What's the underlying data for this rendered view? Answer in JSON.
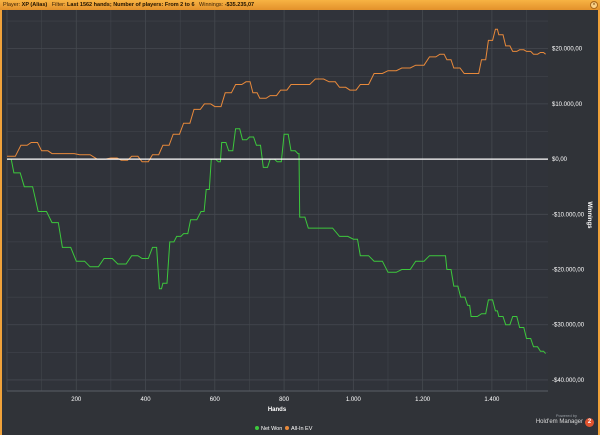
{
  "header": {
    "player_label": "Player:",
    "player_value": "XP (Alias)",
    "filter_label": "Filter:",
    "filter_value": "Last 1562 hands; Number of players: From 2 to 6",
    "winnings_label": "Winnings:",
    "winnings_value": "-$35.235,07"
  },
  "branding": {
    "powered_by": "Powered by",
    "product": "Hold'em Manager",
    "badge": "2"
  },
  "colors": {
    "background": "#303338",
    "grid": "#454950",
    "header": "#f0a23a",
    "net_won": "#3cc83c",
    "all_in_ev": "#e8893a",
    "zero_line": "#ffffff"
  },
  "chart_data": {
    "type": "line",
    "title": "",
    "xlabel": "Hands",
    "ylabel": "Winnings",
    "xlim": [
      0,
      1562
    ],
    "ylim": [
      -42000,
      27000
    ],
    "x_ticks": [
      200,
      400,
      600,
      800,
      1000,
      1200,
      1400
    ],
    "x_tick_labels": [
      "200",
      "400",
      "600",
      "800",
      "1.000",
      "1.200",
      "1.400"
    ],
    "y_ticks": [
      20000,
      10000,
      0,
      -10000,
      -20000,
      -30000,
      -40000
    ],
    "y_tick_labels": [
      "$20.000,00",
      "$10.000,00",
      "$0,00",
      "-$10.000,00",
      "-$20.000,00",
      "-$30.000,00",
      "-$40.000,00"
    ],
    "grid": true,
    "legend_position": "bottom-center",
    "series": [
      {
        "name": "Net Won",
        "color": "#3cc83c",
        "points": [
          [
            0,
            0
          ],
          [
            20,
            -2500
          ],
          [
            50,
            -5000
          ],
          [
            90,
            -9500
          ],
          [
            130,
            -11500
          ],
          [
            160,
            -16000
          ],
          [
            200,
            -18500
          ],
          [
            240,
            -19500
          ],
          [
            280,
            -18000
          ],
          [
            320,
            -19000
          ],
          [
            360,
            -17500
          ],
          [
            390,
            -18000
          ],
          [
            420,
            -16000
          ],
          [
            440,
            -23500
          ],
          [
            450,
            -22500
          ],
          [
            470,
            -15000
          ],
          [
            490,
            -14000
          ],
          [
            510,
            -13500
          ],
          [
            530,
            -11000
          ],
          [
            560,
            -9500
          ],
          [
            575,
            -5500
          ],
          [
            590,
            0
          ],
          [
            610,
            -500
          ],
          [
            620,
            3000
          ],
          [
            640,
            1500
          ],
          [
            660,
            5500
          ],
          [
            680,
            3500
          ],
          [
            700,
            4000
          ],
          [
            720,
            2500
          ],
          [
            740,
            -1500
          ],
          [
            760,
            0
          ],
          [
            780,
            -500
          ],
          [
            800,
            4500
          ],
          [
            820,
            1500
          ],
          [
            840,
            1000
          ],
          [
            845,
            -10500
          ],
          [
            870,
            -12500
          ],
          [
            910,
            -12500
          ],
          [
            960,
            -14000
          ],
          [
            1000,
            -14500
          ],
          [
            1020,
            -17500
          ],
          [
            1060,
            -18500
          ],
          [
            1100,
            -20500
          ],
          [
            1140,
            -20000
          ],
          [
            1180,
            -18500
          ],
          [
            1220,
            -17500
          ],
          [
            1260,
            -17500
          ],
          [
            1270,
            -20000
          ],
          [
            1290,
            -23000
          ],
          [
            1310,
            -25000
          ],
          [
            1330,
            -26500
          ],
          [
            1340,
            -28500
          ],
          [
            1370,
            -28000
          ],
          [
            1390,
            -25500
          ],
          [
            1410,
            -27500
          ],
          [
            1420,
            -28500
          ],
          [
            1440,
            -30000
          ],
          [
            1460,
            -28500
          ],
          [
            1480,
            -30500
          ],
          [
            1500,
            -32500
          ],
          [
            1520,
            -34000
          ],
          [
            1540,
            -34800
          ],
          [
            1555,
            -35235
          ]
        ]
      },
      {
        "name": "All-In EV",
        "color": "#e8893a",
        "points": [
          [
            0,
            500
          ],
          [
            40,
            2500
          ],
          [
            70,
            3000
          ],
          [
            100,
            1500
          ],
          [
            130,
            1000
          ],
          [
            170,
            1000
          ],
          [
            210,
            800
          ],
          [
            260,
            0
          ],
          [
            300,
            200
          ],
          [
            330,
            -200
          ],
          [
            360,
            500
          ],
          [
            390,
            -500
          ],
          [
            420,
            800
          ],
          [
            450,
            2500
          ],
          [
            480,
            4500
          ],
          [
            510,
            6500
          ],
          [
            540,
            9000
          ],
          [
            570,
            10000
          ],
          [
            600,
            9500
          ],
          [
            630,
            12000
          ],
          [
            660,
            13500
          ],
          [
            690,
            14000
          ],
          [
            710,
            12000
          ],
          [
            730,
            11000
          ],
          [
            760,
            11500
          ],
          [
            790,
            12500
          ],
          [
            820,
            13500
          ],
          [
            850,
            13500
          ],
          [
            890,
            14500
          ],
          [
            930,
            14000
          ],
          [
            960,
            13000
          ],
          [
            990,
            12500
          ],
          [
            1020,
            13500
          ],
          [
            1060,
            15500
          ],
          [
            1100,
            16000
          ],
          [
            1140,
            16500
          ],
          [
            1180,
            17000
          ],
          [
            1220,
            18500
          ],
          [
            1250,
            19000
          ],
          [
            1270,
            18000
          ],
          [
            1290,
            16500
          ],
          [
            1320,
            15500
          ],
          [
            1350,
            15500
          ],
          [
            1370,
            18000
          ],
          [
            1390,
            21500
          ],
          [
            1410,
            23500
          ],
          [
            1420,
            22500
          ],
          [
            1440,
            20500
          ],
          [
            1460,
            19500
          ],
          [
            1480,
            19800
          ],
          [
            1500,
            19500
          ],
          [
            1520,
            19000
          ],
          [
            1540,
            19300
          ],
          [
            1555,
            19000
          ]
        ]
      },
      {
        "name": "zero",
        "color": "#ffffff",
        "points": [
          [
            0,
            0
          ],
          [
            1562,
            0
          ]
        ]
      }
    ]
  }
}
